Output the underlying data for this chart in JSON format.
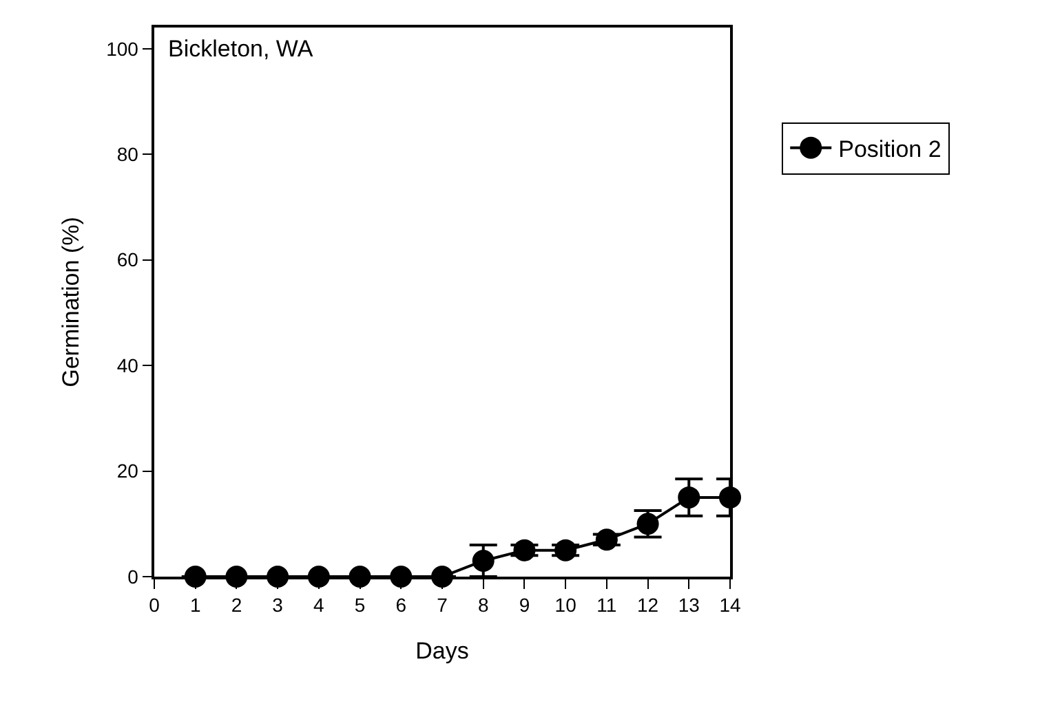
{
  "chart_data": {
    "type": "line",
    "xlabel": "Days",
    "ylabel": "Germination (%)",
    "annotations": [
      "Bickleton, WA"
    ],
    "x": [
      1,
      2,
      3,
      4,
      5,
      6,
      7,
      8,
      9,
      10,
      11,
      12,
      13,
      14
    ],
    "series": [
      {
        "name": "Position 2",
        "color": "#000000",
        "values": [
          0,
          0,
          0,
          0,
          0,
          0,
          0,
          3,
          5,
          5,
          7,
          10,
          15,
          15
        ],
        "errors": [
          null,
          null,
          null,
          null,
          null,
          null,
          null,
          3,
          1,
          1,
          1,
          2.5,
          3.5,
          3.5
        ]
      }
    ],
    "xlim": [
      0,
      14
    ],
    "xticks": [
      0,
      1,
      2,
      3,
      4,
      5,
      6,
      7,
      8,
      9,
      10,
      11,
      12,
      13,
      14
    ],
    "ylim": [
      0,
      104
    ],
    "yticks": [
      0,
      20,
      40,
      60,
      80,
      100
    ],
    "marker": "circle",
    "line_style": "solid",
    "legend": "right"
  }
}
